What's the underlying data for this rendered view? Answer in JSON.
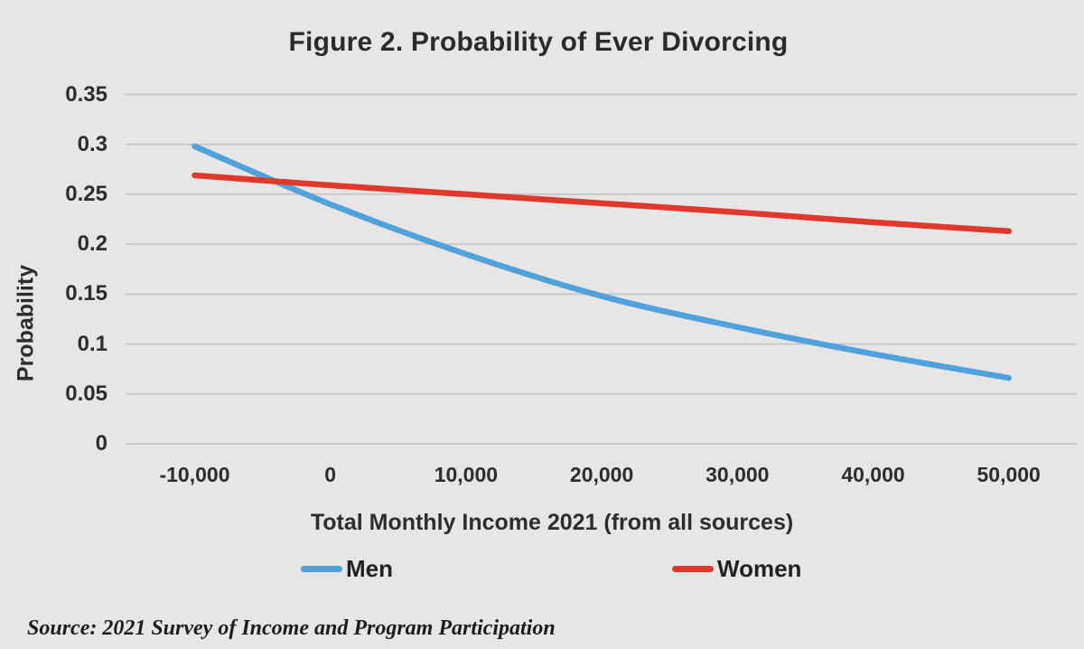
{
  "title": "Figure 2. Probability of Ever Divorcing",
  "chart_data": {
    "type": "line",
    "title": "Figure 2. Probability of Ever Divorcing",
    "xlabel": "Total Monthly Income 2021 (from all sources)",
    "ylabel": "Probability",
    "x": [
      -10000,
      0,
      10000,
      20000,
      30000,
      40000,
      50000
    ],
    "x_tick_labels": [
      "-10,000",
      "0",
      "10,000",
      "20,000",
      "30,000",
      "40,000",
      "50,000"
    ],
    "y_ticks": [
      0,
      0.05,
      0.1,
      0.15,
      0.2,
      0.25,
      0.3,
      0.35
    ],
    "y_tick_labels": [
      "0",
      "0.05",
      "0.1",
      "0.15",
      "0.2",
      "0.25",
      "0.3",
      "0.35"
    ],
    "ylim": [
      0,
      0.35
    ],
    "grid": true,
    "legend_position": "bottom",
    "series": [
      {
        "name": "Men",
        "color": "#4fa2dc",
        "values": [
          0.298,
          0.24,
          0.19,
          0.148,
          0.117,
          0.09,
          0.066
        ]
      },
      {
        "name": "Women",
        "color": "#df392d",
        "values": [
          0.269,
          0.259,
          0.25,
          0.241,
          0.232,
          0.222,
          0.213
        ]
      }
    ]
  },
  "source_note": "Source: 2021 Survey of Income and Program Participation",
  "colors": {
    "background": "#e7e6e4",
    "gridline": "#c9c8c6",
    "text": "#2d2d2d",
    "men_line": "#4fa2dc",
    "women_line": "#df392d"
  }
}
